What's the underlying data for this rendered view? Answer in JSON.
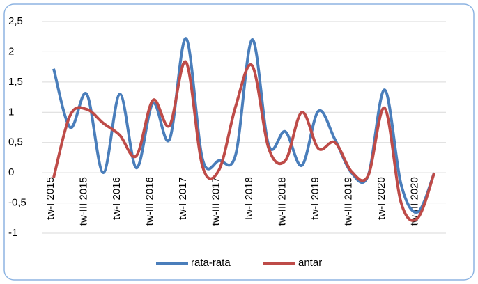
{
  "chart_data": {
    "type": "line",
    "categories": [
      "tw-I 2015",
      null,
      "tw-III 2015",
      null,
      "tw-I 2016",
      null,
      "tw-III 2016",
      null,
      "tw-I 2017",
      null,
      "tw-III 2017",
      null,
      "tw-I 2018",
      null,
      "tw-III 2018",
      null,
      "tw-I 2019",
      null,
      "tw-III 2019",
      null,
      "tw-I 2020",
      null,
      "tw-III 2020",
      null
    ],
    "series": [
      {
        "name": "rata-rata",
        "color": "#4a7ebb",
        "values": [
          1.72,
          0.75,
          1.3,
          0.0,
          1.3,
          0.08,
          1.15,
          0.55,
          2.22,
          0.22,
          0.2,
          0.3,
          2.2,
          0.45,
          0.68,
          0.12,
          1.02,
          0.55,
          0.0,
          -0.05,
          1.37,
          -0.2,
          -0.65,
          0.0
        ]
      },
      {
        "name": "antar",
        "color": "#be4b48",
        "values": [
          -0.08,
          0.95,
          1.05,
          0.82,
          0.62,
          0.28,
          1.2,
          0.78,
          1.83,
          0.1,
          0.05,
          1.1,
          1.77,
          0.4,
          0.2,
          1.0,
          0.4,
          0.5,
          0.02,
          -0.05,
          1.07,
          -0.5,
          -0.75,
          0.0
        ]
      }
    ],
    "ylim": [
      -1,
      2.5
    ],
    "yticks": [
      -1,
      {
        "value": -0.5,
        "label": "-0,5"
      },
      0,
      {
        "value": 0.5,
        "label": "0,5"
      },
      1,
      {
        "value": 1.5,
        "label": "1,5"
      },
      2,
      {
        "value": 2.5,
        "label": "2,5"
      }
    ],
    "grid": true,
    "legend": "bottom"
  }
}
